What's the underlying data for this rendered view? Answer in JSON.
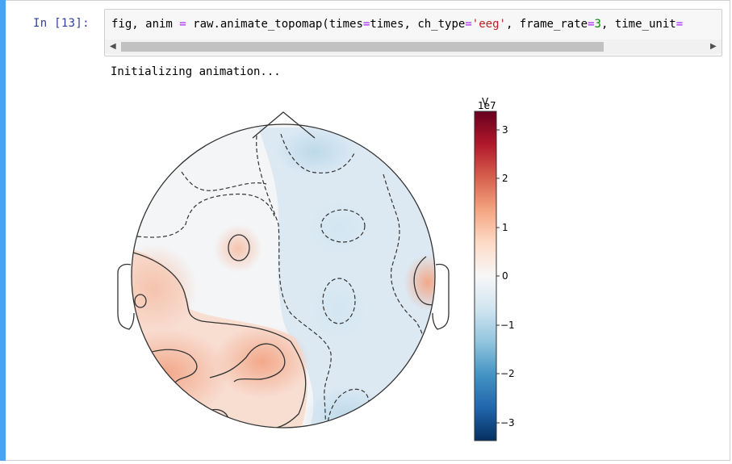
{
  "cell": {
    "prompt": "In  [13]:",
    "code": {
      "t1": "fig, anim ",
      "t2": "=",
      "t3": " raw.animate_topomap(times",
      "t4": "=",
      "t5": "times, ch_type",
      "t6": "=",
      "t7": "'eeg'",
      "t8": ", frame_rate",
      "t9": "=",
      "t10": "3",
      "t11": ", time_unit",
      "t12": "="
    },
    "output_text": "Initializing animation..."
  },
  "colorbar": {
    "unit": "V",
    "scale_label": "1e7",
    "ticks": [
      "3",
      "2",
      "1",
      "0",
      "−1",
      "−2",
      "−3"
    ],
    "colormap": "RdBu_r",
    "colors": [
      "#67001f",
      "#b2182b",
      "#d6604d",
      "#f4a582",
      "#fddbc7",
      "#f7f7f7",
      "#d1e5f0",
      "#92c5de",
      "#4393c3",
      "#2166ac",
      "#053061"
    ]
  }
}
